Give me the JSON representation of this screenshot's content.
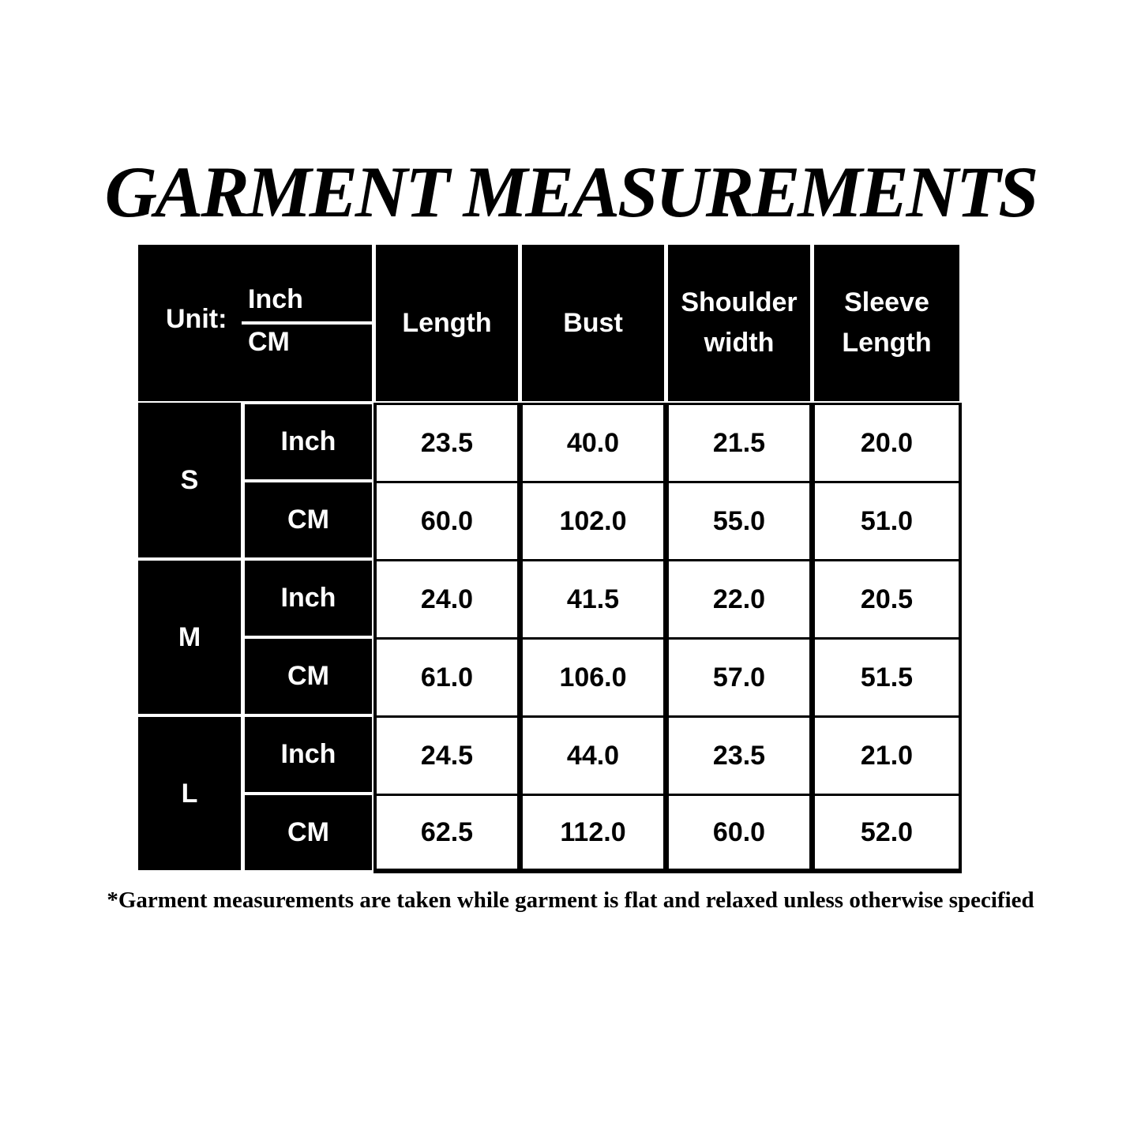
{
  "title": "GARMENT MEASUREMENTS",
  "table": {
    "unit_label": "Unit:",
    "unit_top": "Inch",
    "unit_bottom": "CM",
    "columns": [
      "Length",
      "Bust",
      "Shoulder width",
      "Sleeve Length"
    ],
    "sizes": [
      {
        "size": "S",
        "rows": [
          {
            "unit": "Inch",
            "values": [
              "23.5",
              "40.0",
              "21.5",
              "20.0"
            ]
          },
          {
            "unit": "CM",
            "values": [
              "60.0",
              "102.0",
              "55.0",
              "51.0"
            ]
          }
        ]
      },
      {
        "size": "M",
        "rows": [
          {
            "unit": "Inch",
            "values": [
              "24.0",
              "41.5",
              "22.0",
              "20.5"
            ]
          },
          {
            "unit": "CM",
            "values": [
              "61.0",
              "106.0",
              "57.0",
              "51.5"
            ]
          }
        ]
      },
      {
        "size": "L",
        "rows": [
          {
            "unit": "Inch",
            "values": [
              "24.5",
              "44.0",
              "23.5",
              "21.0"
            ]
          },
          {
            "unit": "CM",
            "values": [
              "62.5",
              "112.0",
              "60.0",
              "52.0"
            ]
          }
        ]
      }
    ]
  },
  "footnote": "*Garment measurements are taken while garment is flat and relaxed unless otherwise specified"
}
